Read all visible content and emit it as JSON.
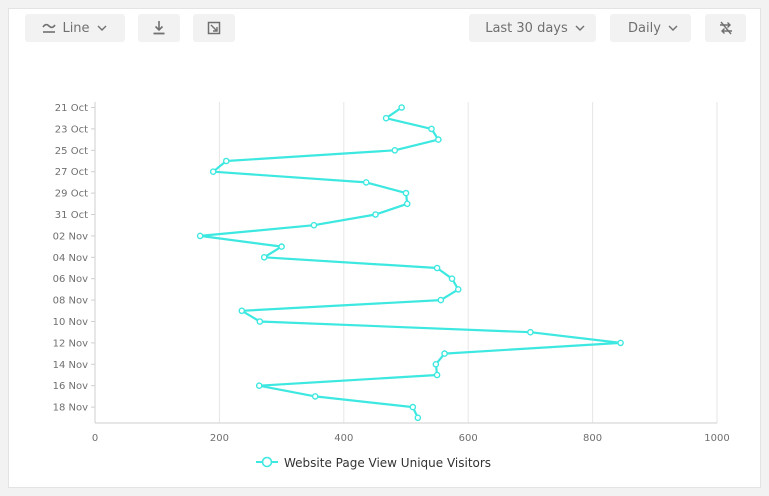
{
  "toolbar": {
    "chart_type_label": "Line",
    "chart_type_icon": "line-chart-icon",
    "download_icon": "download-icon",
    "image_icon": "image-export-icon",
    "range_label": "Last 30 days",
    "interval_label": "Daily",
    "swap_icon": "swap-axes-icon"
  },
  "colors": {
    "series": "#3de8e0",
    "grid": "#e6e6e6",
    "axis": "#cfcfcf"
  },
  "chart_data": {
    "type": "line",
    "orientation": "horizontal",
    "y": [
      "21 Oct",
      "22 Oct",
      "23 Oct",
      "24 Oct",
      "25 Oct",
      "26 Oct",
      "27 Oct",
      "28 Oct",
      "29 Oct",
      "30 Oct",
      "31 Oct",
      "01 Nov",
      "02 Nov",
      "03 Nov",
      "04 Nov",
      "05 Nov",
      "06 Nov",
      "07 Nov",
      "08 Nov",
      "09 Nov",
      "10 Nov",
      "11 Nov",
      "12 Nov",
      "13 Nov",
      "14 Nov",
      "15 Nov",
      "16 Nov",
      "17 Nov",
      "18 Nov",
      "19 Nov"
    ],
    "y_tick_labels": [
      "21 Oct",
      "23 Oct",
      "25 Oct",
      "27 Oct",
      "29 Oct",
      "31 Oct",
      "02 Nov",
      "04 Nov",
      "06 Nov",
      "08 Nov",
      "10 Nov",
      "12 Nov",
      "14 Nov",
      "16 Nov",
      "18 Nov"
    ],
    "x_ticks": [
      0,
      200,
      400,
      600,
      800,
      1000
    ],
    "xlim": [
      0,
      1000
    ],
    "series": [
      {
        "name": "Website Page View Unique Visitors",
        "values": [
          493,
          468,
          541,
          552,
          482,
          211,
          190,
          436,
          500,
          502,
          451,
          352,
          169,
          300,
          272,
          550,
          574,
          584,
          556,
          236,
          265,
          700,
          845,
          562,
          548,
          550,
          264,
          354,
          511,
          519
        ]
      }
    ],
    "grid": true,
    "legend_position": "bottom-center",
    "title": "",
    "xlabel": "",
    "ylabel": ""
  }
}
